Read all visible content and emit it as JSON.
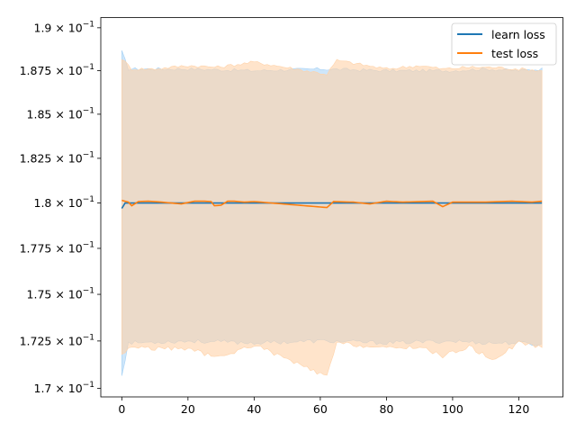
{
  "chart_data": {
    "type": "line",
    "title": "",
    "xlabel": "",
    "ylabel": "",
    "yscale": "log",
    "xlim": [
      -6.35,
      133.35
    ],
    "ylim": [
      0.16955,
      0.1906
    ],
    "grid": false,
    "legend_position": "top-right",
    "xticks": [
      {
        "value": 0,
        "label": "0"
      },
      {
        "value": 20,
        "label": "20"
      },
      {
        "value": 40,
        "label": "40"
      },
      {
        "value": 60,
        "label": "60"
      },
      {
        "value": 80,
        "label": "80"
      },
      {
        "value": 100,
        "label": "100"
      },
      {
        "value": 120,
        "label": "120"
      }
    ],
    "yticks": [
      {
        "value": 0.17,
        "mantissa": "1.7",
        "exponent": "−1"
      },
      {
        "value": 0.1725,
        "mantissa": "1.725",
        "exponent": "−1"
      },
      {
        "value": 0.175,
        "mantissa": "1.75",
        "exponent": "−1"
      },
      {
        "value": 0.1775,
        "mantissa": "1.775",
        "exponent": "−1"
      },
      {
        "value": 0.18,
        "mantissa": "1.8",
        "exponent": "−1"
      },
      {
        "value": 0.1825,
        "mantissa": "1.825",
        "exponent": "−1"
      },
      {
        "value": 0.185,
        "mantissa": "1.85",
        "exponent": "−1"
      },
      {
        "value": 0.1875,
        "mantissa": "1.875",
        "exponent": "−1"
      },
      {
        "value": 0.19,
        "mantissa": "1.9",
        "exponent": "−1"
      }
    ],
    "tick_multiplier": "×",
    "tick_base": "10",
    "series": [
      {
        "name": "learn loss",
        "color": "#1f77b4",
        "band_color": "#a6d1f5",
        "x_start": 0,
        "x_end": 127,
        "mean": [
          0.1797,
          0.18,
          0.18,
          0.18,
          0.18,
          0.18,
          0.18,
          0.18,
          0.18,
          0.18
        ],
        "mean_x": [
          0,
          1,
          2,
          20,
          40,
          60,
          80,
          100,
          120,
          127
        ],
        "band_upper": [
          0.1886,
          0.1876,
          0.1876,
          0.1875,
          0.1876,
          0.1875,
          0.1875,
          0.1876,
          0.1875,
          0.1876
        ],
        "band_lower": [
          0.1707,
          0.1724,
          0.1725,
          0.1724,
          0.1725,
          0.1724,
          0.1725,
          0.1724,
          0.1724,
          0.1723
        ],
        "band_x": [
          0,
          2,
          20,
          40,
          60,
          80,
          100,
          110,
          120,
          127
        ]
      },
      {
        "name": "test loss",
        "color": "#ff7f0e",
        "band_color": "#ffd2a8",
        "x_start": 0,
        "x_end": 127,
        "mean": [
          0.18015,
          0.18005,
          0.17985,
          0.18008,
          0.1801,
          0.18005,
          0.17995,
          0.1801,
          0.1801,
          0.18008,
          0.17985,
          0.17988,
          0.1801,
          0.1801,
          0.18005,
          0.18008,
          0.17975,
          0.18008,
          0.18005,
          0.17995,
          0.1801,
          0.18005,
          0.1801,
          0.1798,
          0.18005,
          0.18005,
          0.1801,
          0.18005,
          0.1801
        ],
        "mean_x": [
          0,
          2,
          3,
          5,
          8,
          12,
          18,
          22,
          25,
          27,
          28,
          30,
          32,
          34,
          37,
          40,
          62,
          64,
          70,
          75,
          80,
          85,
          94,
          97,
          100,
          110,
          118,
          124,
          127
        ],
        "band_upper": [
          0.1882,
          0.1876,
          0.1876,
          0.1878,
          0.1877,
          0.188,
          0.1873,
          0.1881,
          0.1876,
          0.1878,
          0.1876,
          0.1877,
          0.1877,
          0.1876,
          0.1875
        ],
        "band_lower": [
          0.1718,
          0.1722,
          0.1721,
          0.1721,
          0.1716,
          0.1723,
          0.1706,
          0.1724,
          0.1721,
          0.1722,
          0.1717,
          0.1722,
          0.1715,
          0.1724,
          0.1722
        ],
        "band_x": [
          0,
          3,
          10,
          20,
          29,
          40,
          62,
          65,
          80,
          90,
          97,
          105,
          112,
          120,
          127
        ]
      }
    ]
  }
}
